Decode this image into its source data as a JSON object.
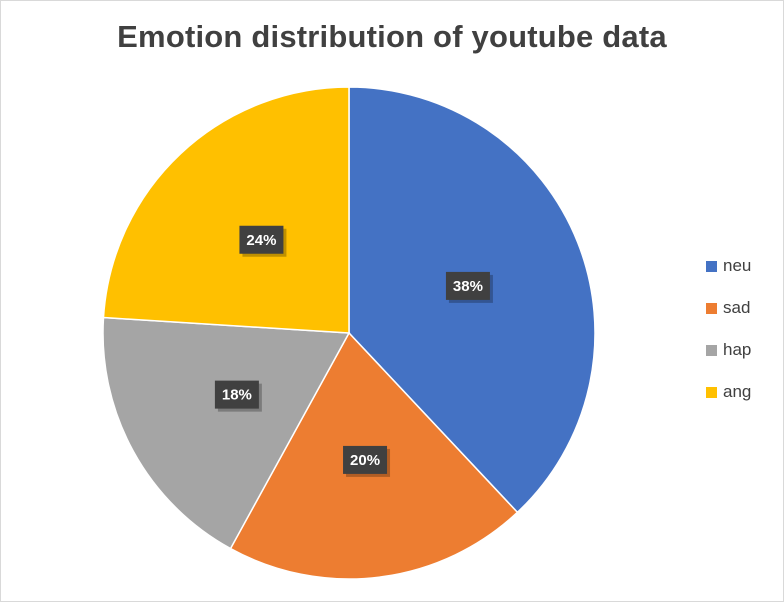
{
  "chart_data": {
    "type": "pie",
    "title": "Emotion distribution of youtube data",
    "categories": [
      "neu",
      "sad",
      "hap",
      "ang"
    ],
    "values": [
      38,
      20,
      18,
      24
    ],
    "data_labels": [
      "38%",
      "20%",
      "18%",
      "24%"
    ],
    "colors": [
      "#4472C4",
      "#ED7D31",
      "#A5A5A5",
      "#FFC000"
    ],
    "legend_position": "right"
  }
}
